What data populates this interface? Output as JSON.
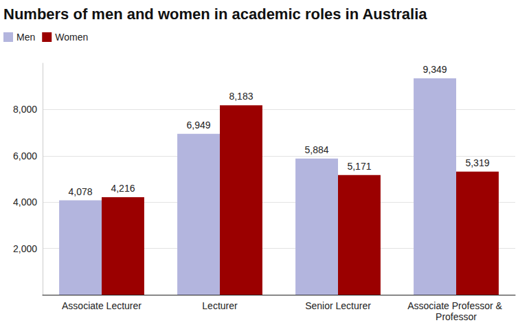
{
  "chart_data": {
    "type": "bar",
    "title": "Numbers of men and women in academic roles in Australia",
    "categories": [
      "Associate Lecturer",
      "Lecturer",
      "Senior Lecturer",
      "Associate Professor & Professor"
    ],
    "series": [
      {
        "name": "Men",
        "color": "#b3b5de",
        "values": [
          4078,
          6949,
          5884,
          9349
        ],
        "value_labels": [
          "4,078",
          "6,949",
          "5,884",
          "9,349"
        ]
      },
      {
        "name": "Women",
        "color": "#9b0000",
        "values": [
          4216,
          8183,
          5171,
          5319
        ],
        "value_labels": [
          "4,216",
          "8,183",
          "5,171",
          "5,319"
        ]
      }
    ],
    "ylim": [
      0,
      10000
    ],
    "yticks": [
      {
        "value": 2000,
        "label": "2,000"
      },
      {
        "value": 4000,
        "label": "4,000"
      },
      {
        "value": 6000,
        "label": "6,000"
      },
      {
        "value": 8000,
        "label": "8,000"
      }
    ],
    "grid": true,
    "legend": "top-left",
    "data_labels": true
  }
}
